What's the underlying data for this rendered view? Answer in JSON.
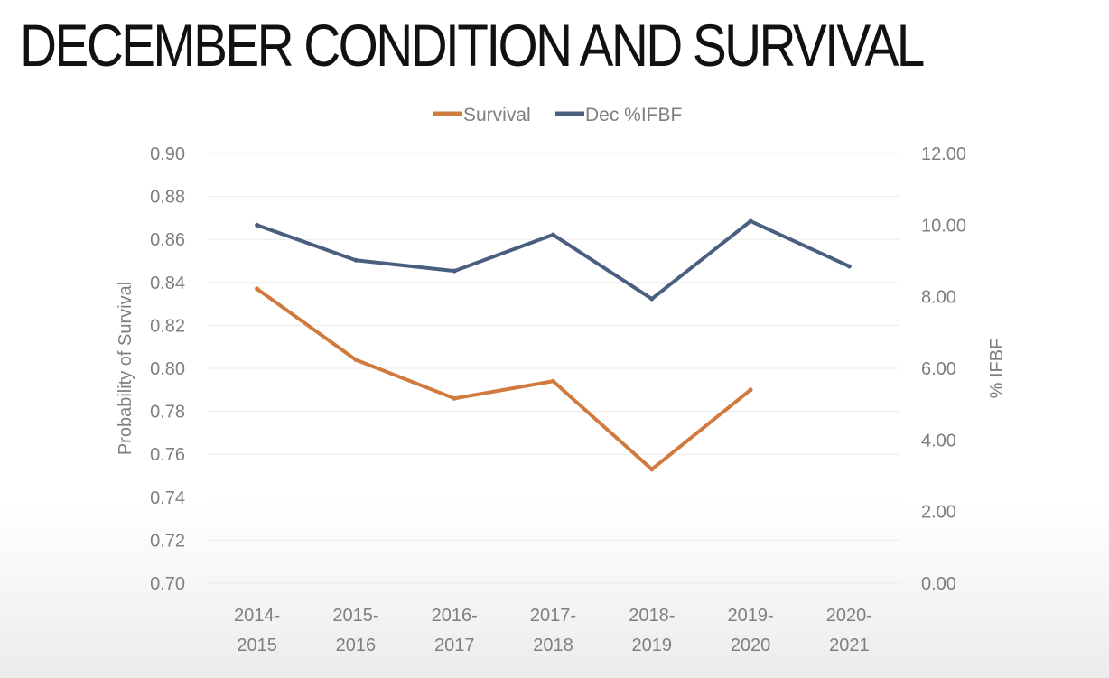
{
  "title": "DECEMBER CONDITION AND SURVIVAL",
  "chart_data": {
    "type": "line",
    "categories": [
      "2014-2015",
      "2015-2016",
      "2016-2017",
      "2017-2018",
      "2018-2019",
      "2019-2020",
      "2020-2021"
    ],
    "category_lines": [
      [
        "2014-",
        "2015"
      ],
      [
        "2015-",
        "2016"
      ],
      [
        "2016-",
        "2017"
      ],
      [
        "2017-",
        "2018"
      ],
      [
        "2018-",
        "2019"
      ],
      [
        "2019-",
        "2020"
      ],
      [
        "2020-",
        "2021"
      ]
    ],
    "series": [
      {
        "name": "Survival",
        "axis": "left",
        "color": "#d07a3e",
        "values": [
          0.837,
          0.804,
          0.786,
          0.794,
          0.753,
          0.79,
          null
        ]
      },
      {
        "name": "Dec %IFBF",
        "axis": "right",
        "color": "#4a5f80",
        "values": [
          10.0,
          9.02,
          8.72,
          9.73,
          7.94,
          10.11,
          8.85
        ]
      }
    ],
    "ylabel": "Probability of Survival",
    "y2label": "% IFBF",
    "ylim": [
      0.7,
      0.9
    ],
    "y2lim": [
      0,
      12
    ],
    "yticks": [
      "0.70",
      "0.72",
      "0.74",
      "0.76",
      "0.78",
      "0.80",
      "0.82",
      "0.84",
      "0.86",
      "0.88",
      "0.90"
    ],
    "y2ticks": [
      "0.00",
      "2.00",
      "4.00",
      "6.00",
      "8.00",
      "10.00",
      "12.00"
    ],
    "grid": true,
    "legend": "top"
  }
}
